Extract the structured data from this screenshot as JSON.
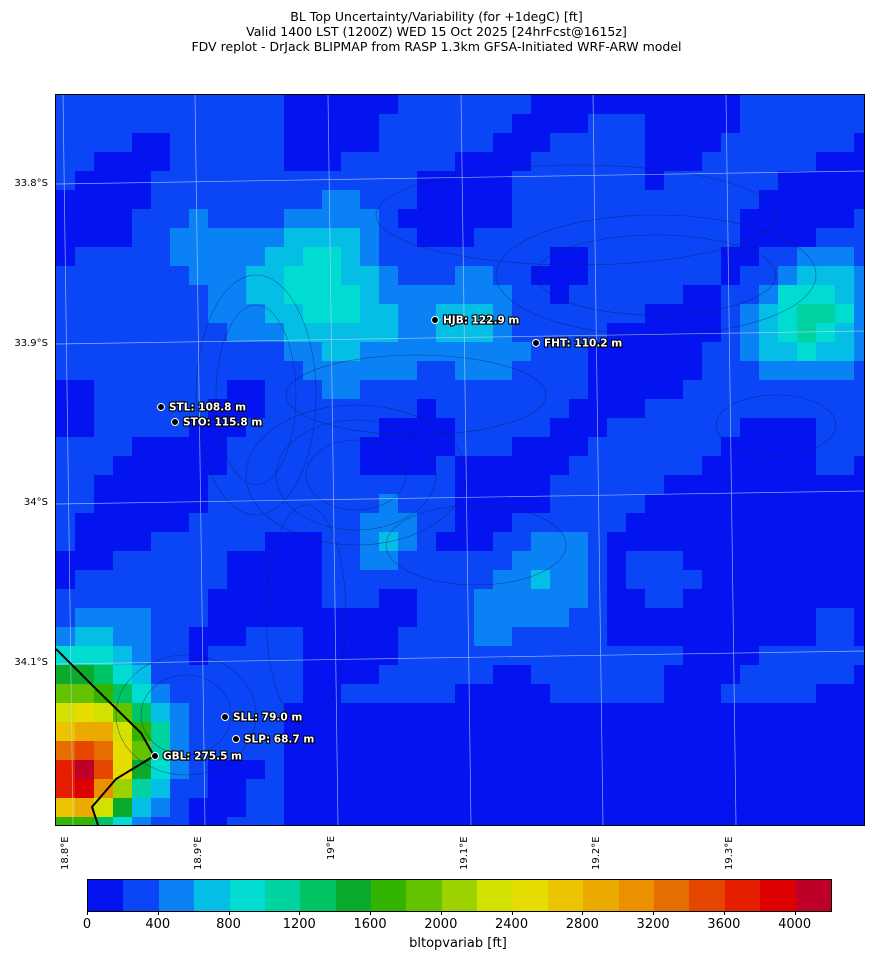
{
  "header": {
    "title_line1": "BL Top Uncertainty/Variability (for +1degC) [ft]",
    "title_line2": "Valid 1400 LST (1200Z) WED 15 Oct 2025 [24hrFcst@1615z]",
    "title_line3": "FDV replot - DrJack BLIPMAP from RASP 1.3km GFSA-Initiated WRF-ARW model"
  },
  "map": {
    "lat_labels": [
      "33.8°S",
      "33.9°S",
      "34°S",
      "34.1°S"
    ],
    "lon_labels": [
      "18.8°E",
      "18.9°E",
      "19°E",
      "19.1°E",
      "19.2°E",
      "19.3°E"
    ],
    "stations": [
      {
        "name": "HJB",
        "label": "HJB: 122.9 m"
      },
      {
        "name": "FHT",
        "label": "FHT: 110.2 m"
      },
      {
        "name": "STL",
        "label": "STL: 108.8 m"
      },
      {
        "name": "STO",
        "label": "STO: 115.8 m"
      },
      {
        "name": "SLL",
        "label": "SLL: 79.0 m"
      },
      {
        "name": "SLP",
        "label": "SLP: 68.7 m"
      },
      {
        "name": "GBL",
        "label": "GBL: 275.5 m"
      }
    ]
  },
  "colorbar": {
    "title": "bltopvariab [ft]",
    "tick_labels": [
      "0",
      "400",
      "800",
      "1200",
      "1600",
      "2000",
      "2400",
      "2800",
      "3200",
      "3600",
      "4000"
    ],
    "colors": [
      "#0414f0",
      "#0a46f5",
      "#0a82f5",
      "#05bee6",
      "#00dcd2",
      "#00d2a0",
      "#00c364",
      "#0aaa2d",
      "#32b400",
      "#64c300",
      "#9bd200",
      "#d2e100",
      "#e6dc00",
      "#ebc300",
      "#ebaa00",
      "#eb9100",
      "#e66e00",
      "#e64600",
      "#e61e00",
      "#dc0000",
      "#be0028"
    ]
  }
}
